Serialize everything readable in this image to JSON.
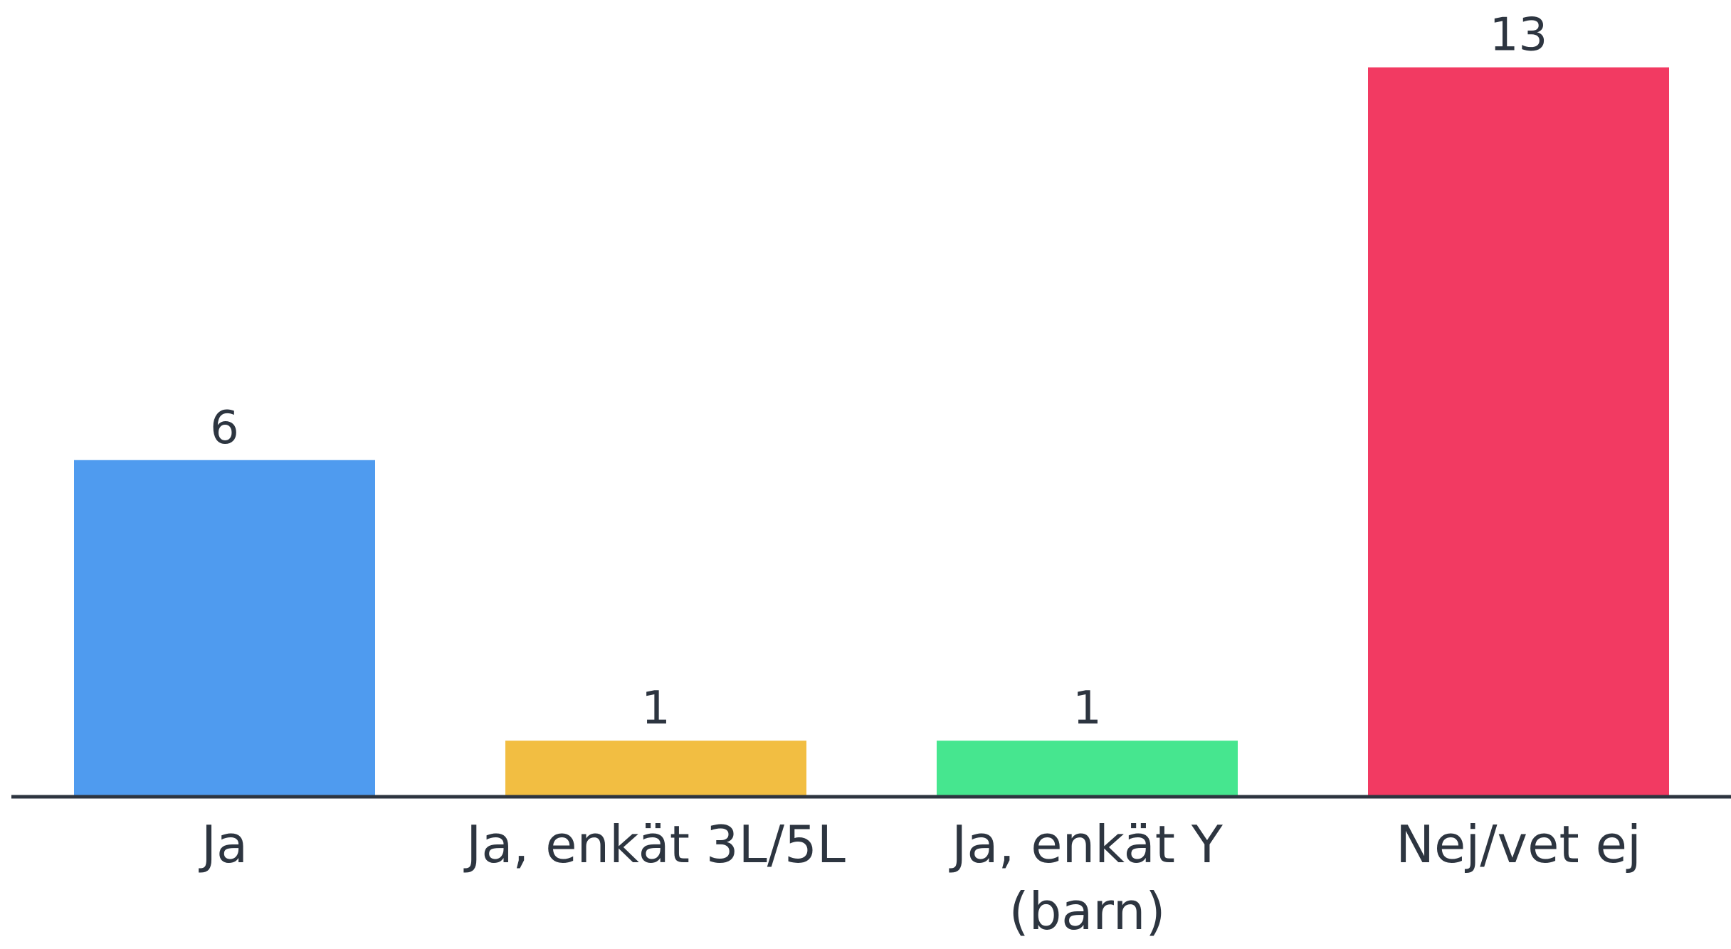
{
  "chart_data": {
    "type": "bar",
    "categories": [
      "Ja",
      "Ja, enkät 3L/5L",
      "Ja, enkät Y (barn)",
      "Nej/vet ej"
    ],
    "values": [
      6,
      1,
      1,
      13
    ],
    "colors": [
      "#4f9bef",
      "#f2be42",
      "#46e68f",
      "#f23a62"
    ],
    "ylim": [
      0,
      14.2
    ]
  }
}
